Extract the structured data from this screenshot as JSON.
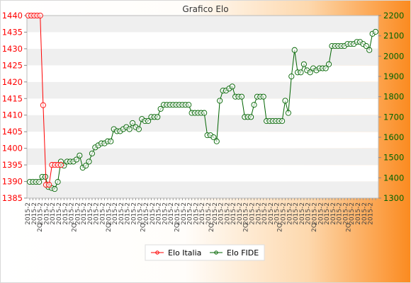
{
  "chart_data": {
    "type": "line",
    "title": "Grafico Elo",
    "left_axis": {
      "ylim": [
        1385,
        1440
      ],
      "ticks": [
        "1385",
        "1390",
        "1395",
        "1400",
        "1405",
        "1410",
        "1415",
        "1420",
        "1425",
        "1430",
        "1435",
        "1440"
      ],
      "color": "#ff0000"
    },
    "right_axis": {
      "ylim": [
        1300,
        2200
      ],
      "ticks": [
        "1300",
        "1400",
        "1500",
        "1600",
        "1700",
        "1800",
        "1900",
        "2000",
        "2100",
        "2200"
      ],
      "color": "#006400"
    },
    "x_label_text": "2015-2",
    "x_label_text_alt": "2Q",
    "series": [
      {
        "name": "Elo Italia",
        "axis": "left",
        "color": "#ff0000",
        "values": [
          1440,
          1440,
          1440,
          1440,
          1440,
          1413,
          1389,
          1389,
          1395,
          1395,
          1395,
          1395
        ]
      },
      {
        "name": "Elo FIDE",
        "axis": "right",
        "color": "#006400",
        "values": [
          1380,
          1380,
          1380,
          1380,
          1405,
          1405,
          1355,
          1350,
          1345,
          1380,
          1480,
          1460,
          1480,
          1480,
          1480,
          1490,
          1510,
          1450,
          1460,
          1480,
          1520,
          1550,
          1560,
          1570,
          1570,
          1580,
          1580,
          1640,
          1630,
          1630,
          1640,
          1650,
          1640,
          1670,
          1650,
          1640,
          1690,
          1680,
          1680,
          1700,
          1700,
          1700,
          1740,
          1760,
          1760,
          1760,
          1760,
          1760,
          1760,
          1760,
          1760,
          1760,
          1720,
          1720,
          1720,
          1720,
          1720,
          1610,
          1610,
          1600,
          1580,
          1780,
          1830,
          1830,
          1840,
          1850,
          1800,
          1800,
          1800,
          1700,
          1700,
          1700,
          1760,
          1800,
          1800,
          1800,
          1680,
          1680,
          1680,
          1680,
          1680,
          1680,
          1780,
          1720,
          1900,
          2030,
          1920,
          1920,
          1960,
          1930,
          1920,
          1940,
          1930,
          1940,
          1940,
          1940,
          1960,
          2050,
          2050,
          2050,
          2050,
          2050,
          2060,
          2060,
          2060,
          2070,
          2070,
          2060,
          2050,
          2030,
          2110,
          2120
        ]
      }
    ],
    "legend": {
      "position": "bottom-center",
      "entries": [
        "Elo Italia",
        "Elo FIDE"
      ]
    },
    "grid": true
  }
}
